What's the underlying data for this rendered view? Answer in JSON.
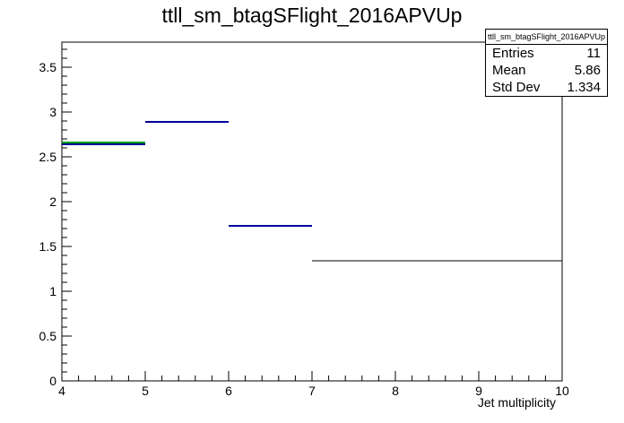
{
  "chart_data": {
    "type": "step-histogram",
    "title": "ttll_sm_btagSFlight_2016APVUp",
    "xlabel": "Jet multiplicity",
    "ylabel": "",
    "xlim": [
      4,
      10
    ],
    "ylim": [
      0,
      3.78
    ],
    "x_ticks": [
      "4",
      "5",
      "6",
      "7",
      "8",
      "9",
      "10"
    ],
    "y_ticks": [
      "0",
      "0.5",
      "1",
      "1.5",
      "2",
      "2.5",
      "3",
      "3.5"
    ],
    "series": [
      {
        "color": "#000000",
        "bins": [
          {
            "x0": 4,
            "x1": 5,
            "y": 2.64
          },
          {
            "x0": 5,
            "x1": 6,
            "y": 2.89
          },
          {
            "x0": 6,
            "x1": 7,
            "y": 1.73
          },
          {
            "x0": 7,
            "x1": 10,
            "y": 1.34
          }
        ]
      },
      {
        "color": "#00a000",
        "bins": [
          {
            "x0": 4,
            "x1": 5,
            "y": 2.66
          }
        ]
      },
      {
        "color": "#000099",
        "bins": [
          {
            "x0": 4,
            "x1": 5,
            "y": 2.64
          },
          {
            "x0": 5,
            "x1": 6,
            "y": 2.89
          },
          {
            "x0": 6,
            "x1": 7,
            "y": 1.73
          }
        ]
      }
    ],
    "stats": {
      "title": "ttll_sm_btagSFlight_2016APVUp",
      "rows": [
        {
          "label": "Entries",
          "value": "11"
        },
        {
          "label": "Mean",
          "value": "5.86"
        },
        {
          "label": "Std Dev",
          "value": "1.334"
        }
      ]
    }
  }
}
